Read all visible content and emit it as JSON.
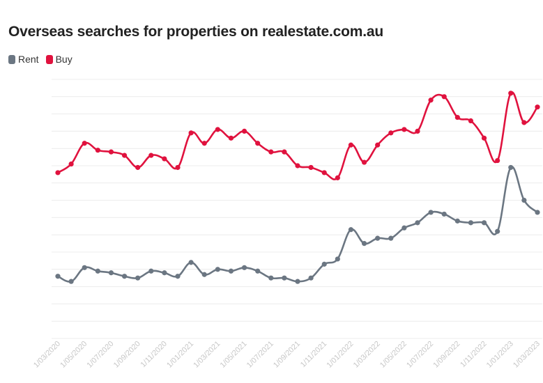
{
  "chart_data": {
    "type": "line",
    "title": "Overseas searches for properties on realestate.com.au",
    "xlabel": "",
    "ylabel": "",
    "grid": true,
    "legend_placement": "top-left",
    "x_tick_labels": [
      "1/03/2020",
      "1/05/2020",
      "1/07/2020",
      "1/09/2020",
      "1/11/2020",
      "1/01/2021",
      "1/03/2021",
      "1/05/2021",
      "1/07/2021",
      "1/09/2021",
      "1/11/2021",
      "1/01/2022",
      "1/03/2022",
      "1/05/2022",
      "1/07/2022",
      "1/09/2022",
      "1/11/2022",
      "1/01/2023",
      "1/03/2023"
    ],
    "ylim": [
      0,
      15
    ],
    "series": [
      {
        "name": "Rent",
        "color": "#6b7682",
        "values": [
          3.6,
          3.3,
          4.1,
          3.9,
          3.8,
          3.6,
          3.5,
          3.9,
          3.8,
          3.6,
          4.4,
          3.7,
          4.0,
          3.9,
          4.1,
          3.9,
          3.5,
          3.5,
          3.3,
          3.5,
          4.3,
          4.6,
          6.3,
          5.5,
          5.8,
          5.8,
          6.4,
          6.7,
          7.3,
          7.2,
          6.8,
          6.7,
          6.7,
          6.2,
          9.9,
          8.0,
          7.3
        ]
      },
      {
        "name": "Buy",
        "color": "#e0123e",
        "values": [
          9.6,
          10.1,
          11.3,
          10.9,
          10.8,
          10.6,
          9.9,
          10.6,
          10.4,
          9.9,
          11.9,
          11.3,
          12.1,
          11.6,
          12.0,
          11.3,
          10.8,
          10.8,
          10.0,
          9.9,
          9.6,
          9.3,
          11.2,
          10.2,
          11.2,
          11.9,
          12.1,
          12.0,
          13.8,
          14.0,
          12.8,
          12.6,
          11.6,
          10.3,
          14.2,
          12.5,
          13.4
        ]
      }
    ]
  }
}
